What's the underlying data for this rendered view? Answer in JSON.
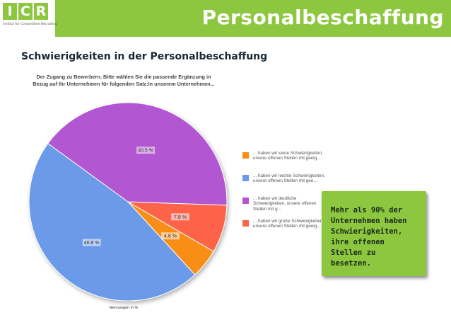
{
  "header": {
    "logo_letters": [
      "I",
      "C",
      "R"
    ],
    "logo_subtitle": "Institut for Competitive Recruiting",
    "title": "Personalbeschaffung"
  },
  "subtitle": "Schwierigkeiten in der Personalbeschaffung",
  "note": "Mehr als 90% der Unternehmen haben Schwierigkeiten, ihre offenen Stellen zu besetzen.",
  "caption": "Nennungen in %",
  "chart_data": {
    "type": "pie",
    "title": "Der Zugang zu Bewerbern. Bitte wählen Sie die passende Ergänzung in Bezug auf Ihr Unternehmen für folgenden Satz:In unserem Unternehmen...",
    "slices": [
      {
        "legend": "... haben wir keine Schwierigkeiten, unsere offenen Stellen mit geeig...",
        "value": 4.8,
        "label": "4.8 %",
        "color": "#f98e14"
      },
      {
        "legend": "... haben wir leichte Schwierigkeiten, unsere offenen Stellen mit gee...",
        "value": 46.8,
        "label": "46.8 %",
        "color": "#6b9ae8"
      },
      {
        "legend": "... haben wir deutliche Schwierigkeiten, unsere offenen Stellen mit g...",
        "value": 40.5,
        "label": "40.5 %",
        "color": "#b356d1"
      },
      {
        "legend": "... haben wir große Schwierigkeiten, unsere offenen Stellen mit geeig...",
        "value": 7.8,
        "label": "7.8 %",
        "color": "#fc6448"
      }
    ],
    "draw_order": [
      3,
      0,
      1,
      2
    ],
    "start_angle_deg": 92,
    "legend_position": "right"
  }
}
